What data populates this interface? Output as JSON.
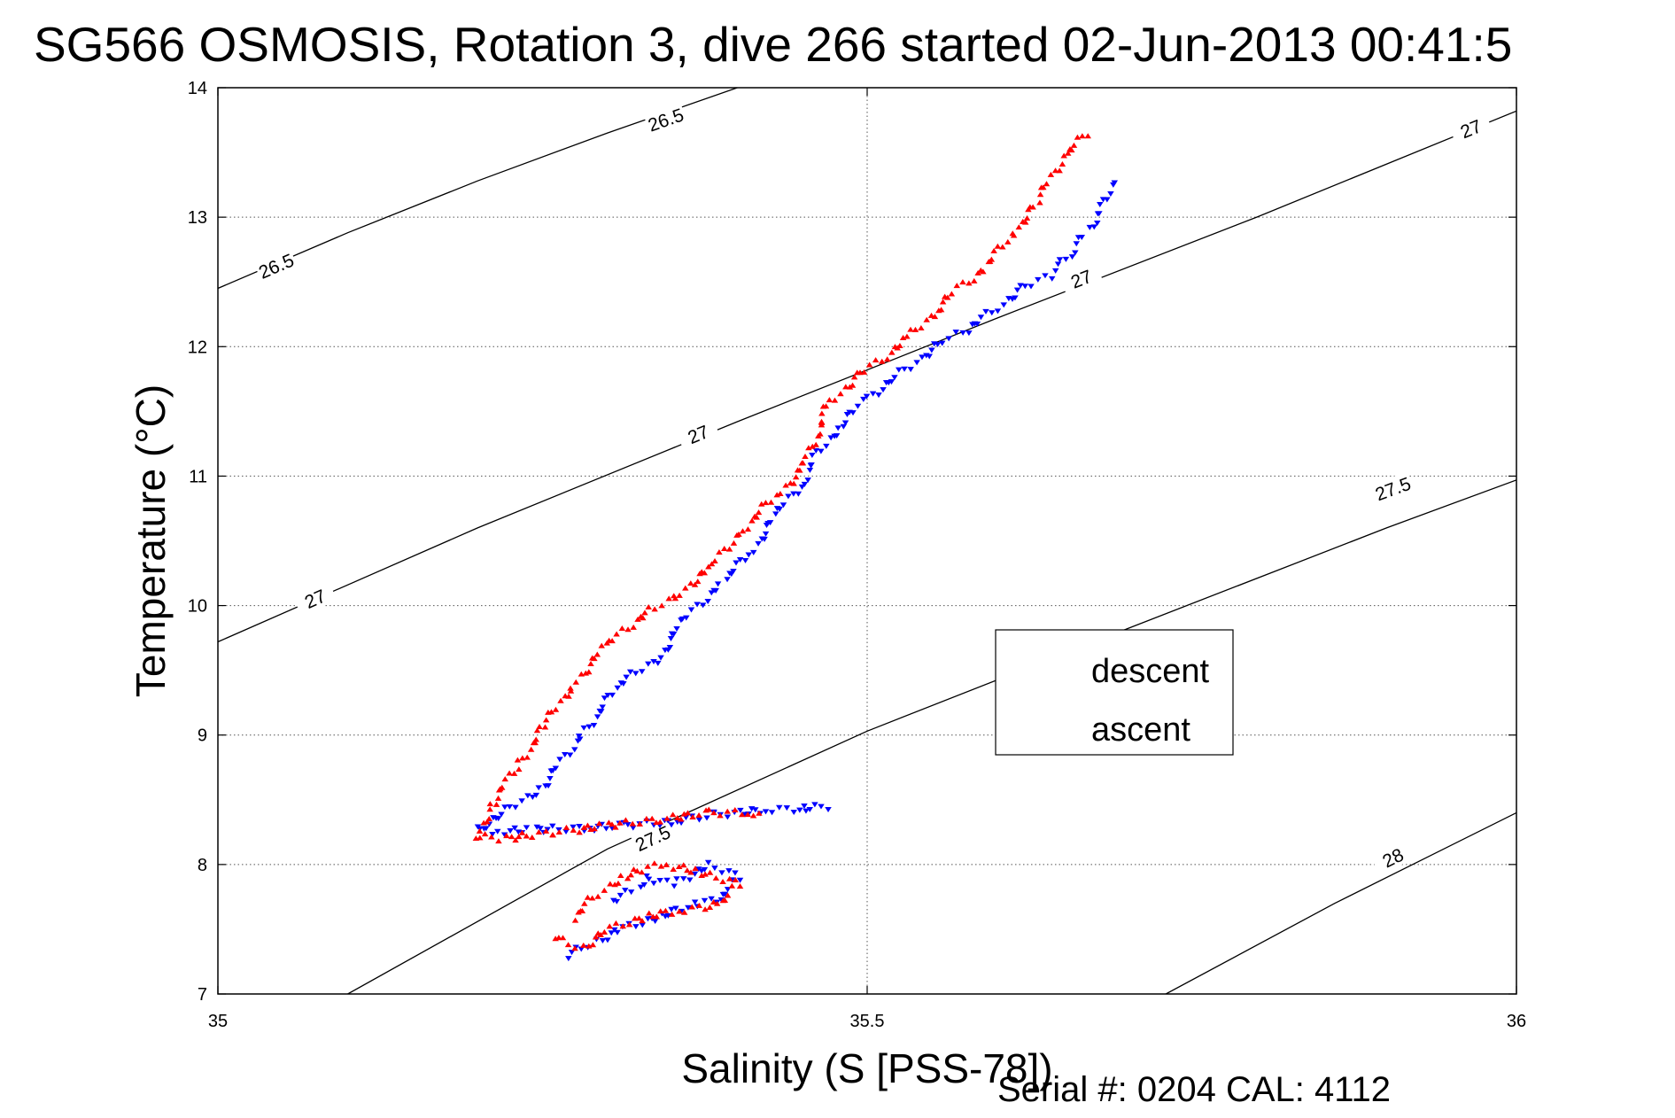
{
  "title": "SG566 OSMOSIS, Rotation 3, dive 266 started 02-Jun-2013 00:41:5",
  "footer": "Serial #: 0204  CAL: 4112",
  "chart_data": {
    "type": "scatter",
    "xlabel": "Salinity (S [PSS-78])",
    "ylabel": "Temperature (°C)",
    "xlim": [
      35,
      36
    ],
    "ylim": [
      7,
      14
    ],
    "xticks": [
      "35",
      "35.5",
      "36"
    ],
    "yticks": [
      "7",
      "8",
      "9",
      "10",
      "11",
      "12",
      "13",
      "14"
    ],
    "grid": true,
    "legend": {
      "placement": "inside-right",
      "entries": [
        {
          "label": "descent",
          "color": "#0000ff",
          "marker": "triangle-down"
        },
        {
          "label": "ascent",
          "color": "#ff0000",
          "marker": "triangle-up"
        }
      ]
    },
    "density_contours": [
      {
        "label": "26.5",
        "points": [
          [
            35.0,
            12.45
          ],
          [
            35.1,
            12.88
          ],
          [
            35.2,
            13.28
          ],
          [
            35.3,
            13.65
          ],
          [
            35.4,
            14.0
          ]
        ],
        "label_positions": [
          [
            35.045,
            12.62
          ],
          [
            35.345,
            13.75
          ]
        ]
      },
      {
        "label": "27",
        "points": [
          [
            35.0,
            9.72
          ],
          [
            35.2,
            10.6
          ],
          [
            35.4,
            11.42
          ],
          [
            35.6,
            12.22
          ],
          [
            35.8,
            13.0
          ],
          [
            36.0,
            13.82
          ]
        ],
        "label_positions": [
          [
            35.075,
            10.05
          ],
          [
            35.37,
            11.32
          ],
          [
            35.665,
            12.52
          ],
          [
            35.965,
            13.68
          ]
        ]
      },
      {
        "label": "27.5",
        "points": [
          [
            35.1,
            7.0
          ],
          [
            35.3,
            8.12
          ],
          [
            35.5,
            9.03
          ],
          [
            35.7,
            9.82
          ],
          [
            35.9,
            10.6
          ],
          [
            36.0,
            10.97
          ]
        ],
        "label_positions": [
          [
            35.335,
            8.2
          ],
          [
            35.905,
            10.9
          ]
        ]
      },
      {
        "label": "28",
        "points": [
          [
            35.73,
            7.0
          ],
          [
            35.86,
            7.7
          ],
          [
            36.0,
            8.4
          ]
        ],
        "label_positions": [
          [
            35.905,
            8.05
          ]
        ]
      }
    ],
    "series": [
      {
        "name": "descent",
        "x": [
          35.47,
          35.45,
          35.42,
          35.38,
          35.35,
          35.31,
          35.28,
          35.24,
          35.21,
          35.2,
          35.22,
          35.25,
          35.28,
          35.31,
          35.34,
          35.36,
          35.39,
          35.41,
          35.43,
          35.45,
          35.46,
          35.48,
          35.5,
          35.52,
          35.54,
          35.56,
          35.58,
          35.6,
          35.62,
          35.64,
          35.65,
          35.66,
          35.67,
          35.68,
          35.69
        ],
        "y": [
          8.45,
          8.43,
          8.42,
          8.38,
          8.33,
          8.3,
          8.28,
          8.27,
          8.25,
          8.28,
          8.4,
          8.6,
          9.0,
          9.4,
          9.6,
          9.9,
          10.2,
          10.4,
          10.7,
          10.95,
          11.15,
          11.4,
          11.6,
          11.75,
          11.9,
          12.05,
          12.15,
          12.3,
          12.45,
          12.55,
          12.65,
          12.75,
          12.9,
          13.05,
          13.3
        ],
        "segments": "approximate"
      },
      {
        "name": "ascent",
        "x": [
          35.67,
          35.65,
          35.63,
          35.61,
          35.59,
          35.57,
          35.55,
          35.53,
          35.51,
          35.49,
          35.47,
          35.46,
          35.45,
          35.43,
          35.4,
          35.38,
          35.35,
          35.33,
          35.3,
          35.27,
          35.25,
          35.23,
          35.21,
          35.2,
          35.22,
          35.26,
          35.3,
          35.34,
          35.38,
          35.41,
          35.42
        ],
        "y": [
          13.65,
          13.45,
          13.1,
          12.85,
          12.6,
          12.45,
          12.25,
          12.05,
          11.9,
          11.75,
          11.55,
          11.3,
          11.05,
          10.85,
          10.55,
          10.3,
          10.05,
          9.95,
          9.7,
          9.35,
          9.05,
          8.75,
          8.45,
          8.22,
          8.2,
          8.25,
          8.3,
          8.35,
          8.4,
          8.4,
          8.38
        ]
      }
    ],
    "lower_loop": {
      "descent": {
        "x": [
          35.27,
          35.29,
          35.31,
          35.34,
          35.37,
          35.39,
          35.4,
          35.38,
          35.35,
          35.33,
          35.32,
          35.3
        ],
        "y": [
          7.3,
          7.4,
          7.5,
          7.6,
          7.7,
          7.75,
          7.9,
          8.0,
          7.85,
          7.9,
          7.8,
          7.7
        ]
      },
      "ascent": {
        "x": [
          35.26,
          35.28,
          35.3,
          35.33,
          35.36,
          35.39,
          35.4,
          35.37,
          35.34,
          35.31,
          35.29,
          35.27
        ],
        "y": [
          7.45,
          7.35,
          7.5,
          7.6,
          7.65,
          7.7,
          7.85,
          7.95,
          8.0,
          7.9,
          7.75,
          7.55
        ]
      }
    }
  }
}
